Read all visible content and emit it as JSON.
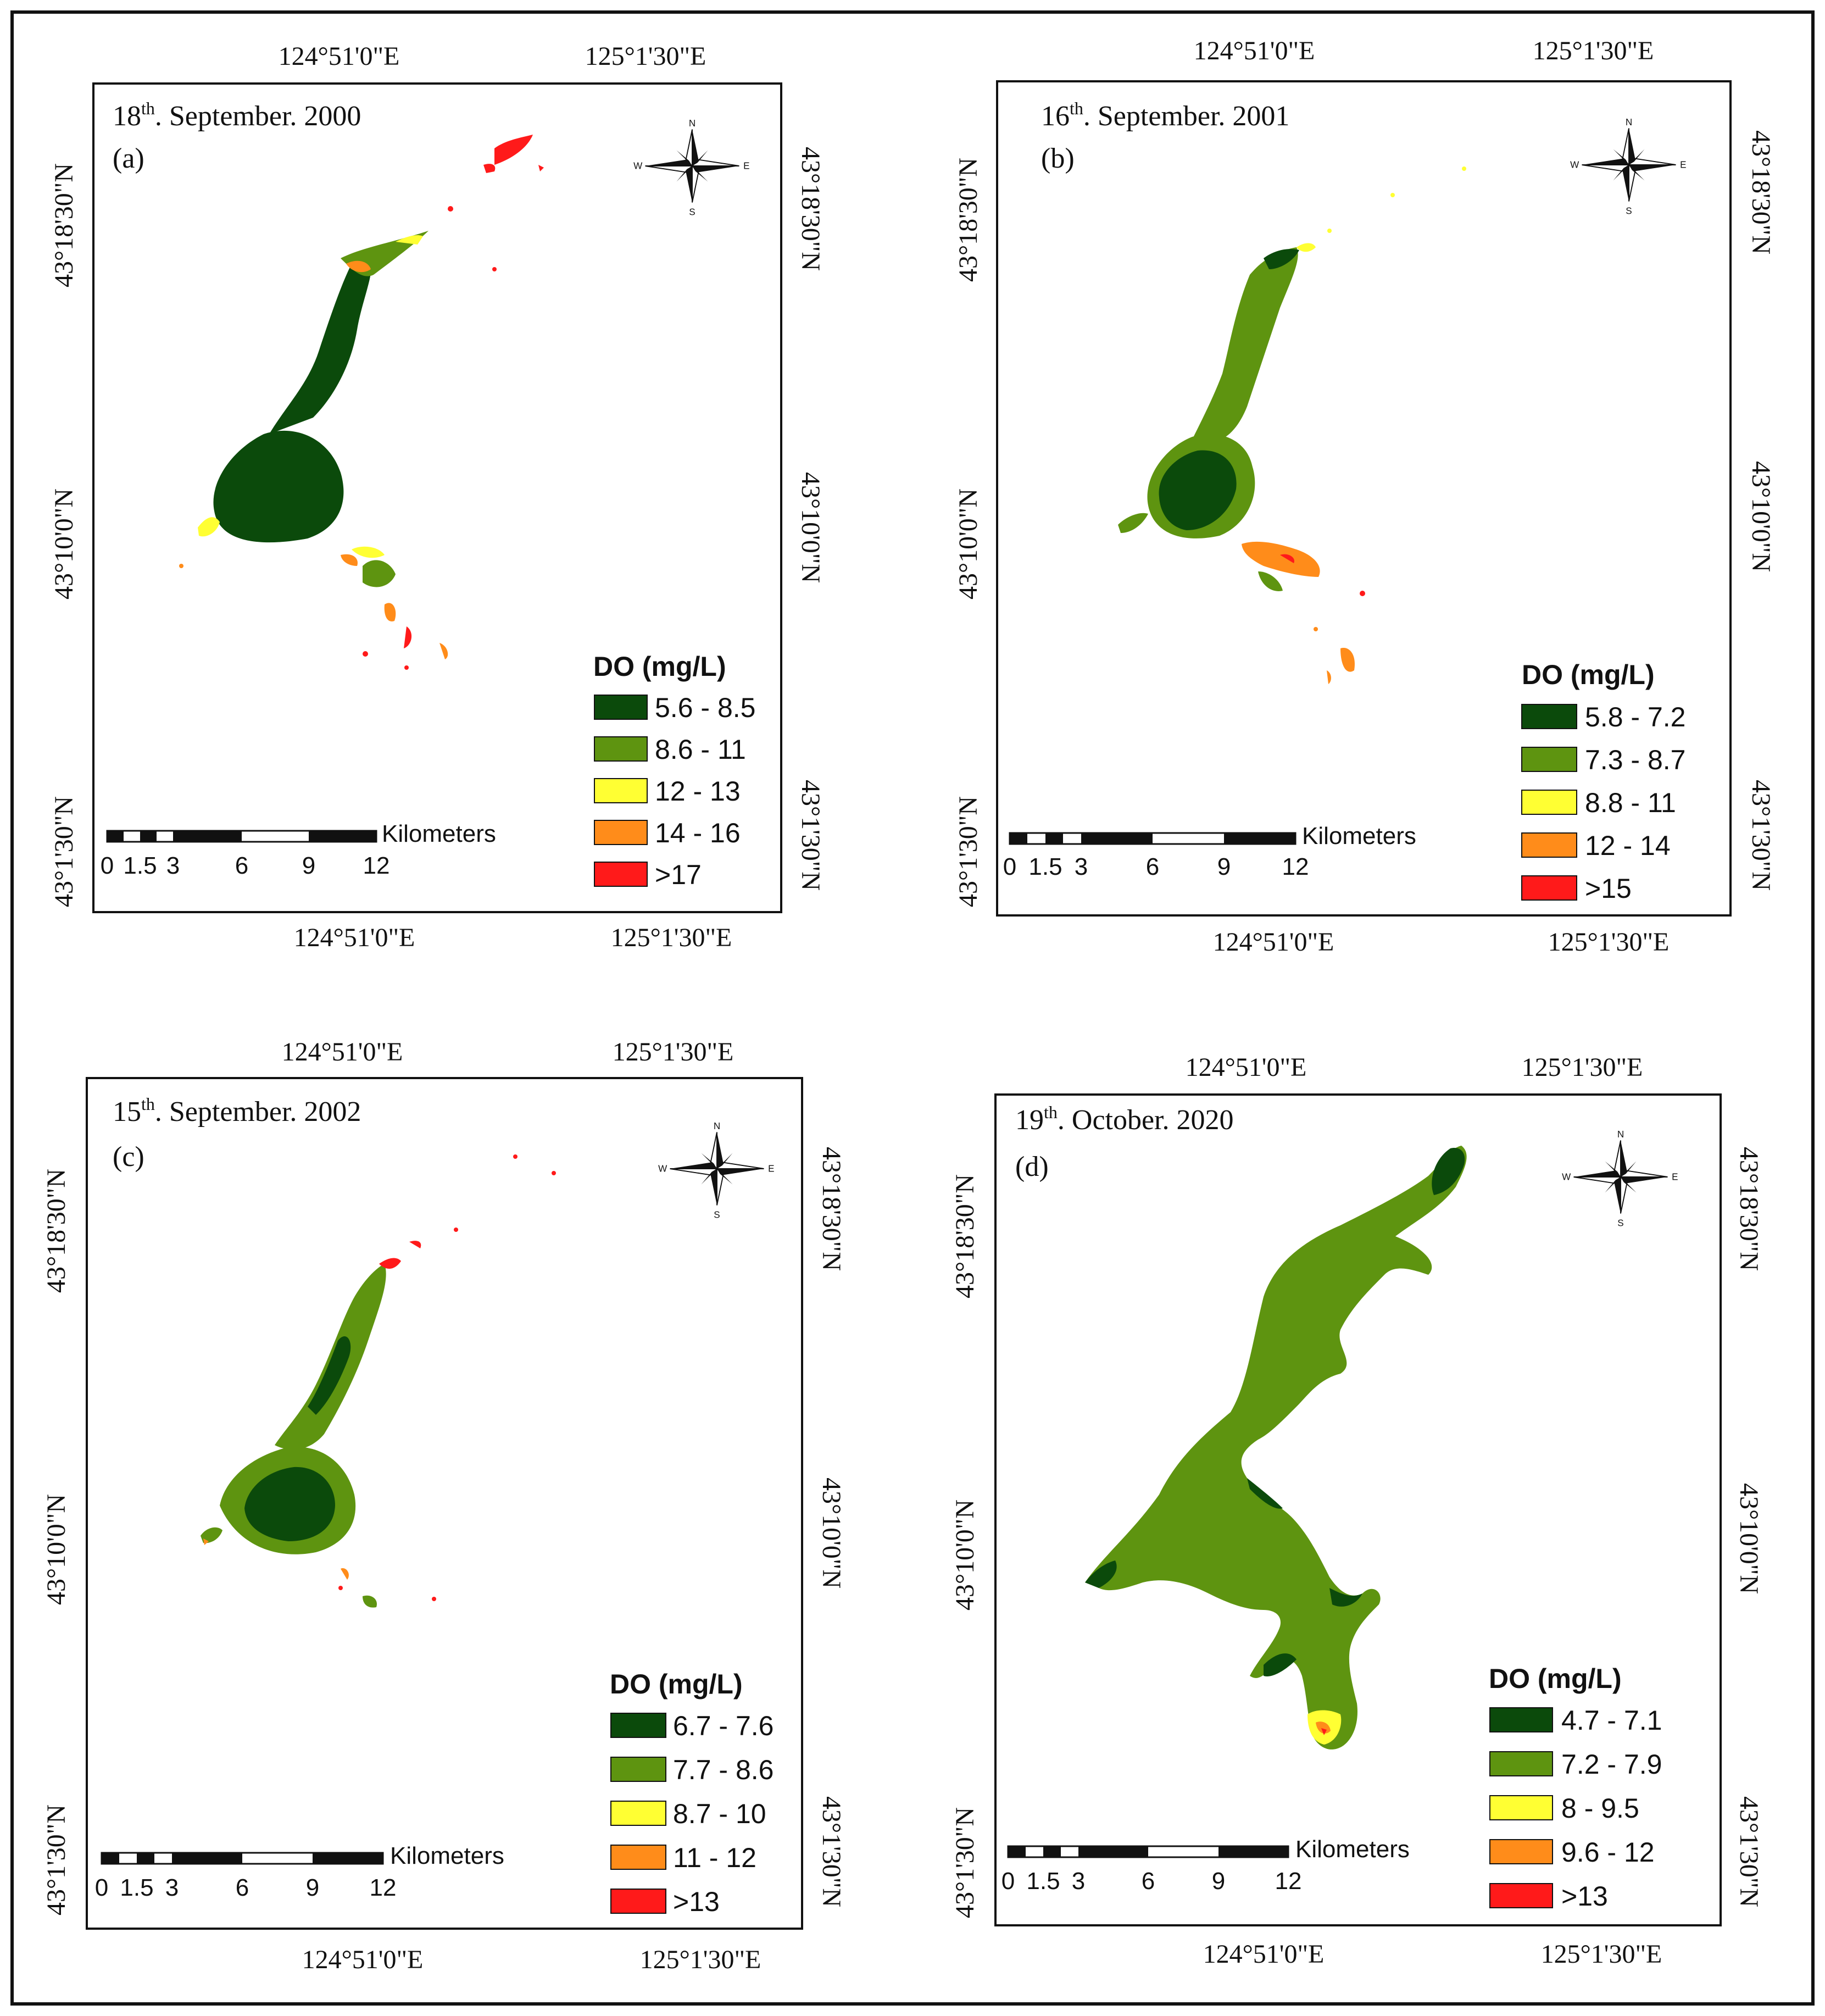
{
  "compass": {
    "n": "N",
    "s": "S",
    "e": "E",
    "w": "W"
  },
  "scale": {
    "unit": "Kilometers",
    "ticks": [
      "0",
      "1.5",
      "3",
      "6",
      "9",
      "12"
    ]
  },
  "colors": {
    "dark_green": "#0b4a0b",
    "green": "#5e9410",
    "yellow": "#ffff33",
    "orange": "#ff8c1a",
    "red": "#ff1a1a",
    "frame": "#111111"
  },
  "panels": [
    {
      "id": "a",
      "date_day": "18",
      "date_suffix": "th",
      "date_rest": ". September. 2000",
      "letter": "(a)",
      "coords": {
        "top_left": "124°51'0\"E",
        "top_right": "125°1'30\"E",
        "bottom_left": "124°51'0\"E",
        "bottom_right": "125°1'30\"E",
        "left_top": "43°18'30\"N",
        "left_mid": "43°10'0\"N",
        "left_bot": "43°1'30\"N",
        "right_top": "43°18'30\"N",
        "right_mid": "43°10'0\"N",
        "right_bot": "43°1'30\"N"
      },
      "legend": {
        "title": "DO (mg/L)",
        "classes": [
          "5.6 - 8.5",
          "8.6 - 11",
          "12 - 13",
          "14 - 16",
          ">17"
        ]
      }
    },
    {
      "id": "b",
      "date_day": "16",
      "date_suffix": "th",
      "date_rest": ". September. 2001",
      "letter": "(b)",
      "coords": {
        "top_left": "124°51'0\"E",
        "top_right": "125°1'30\"E",
        "bottom_left": "124°51'0\"E",
        "bottom_right": "125°1'30\"E",
        "left_top": "43°18'30\"N",
        "left_mid": "43°10'0\"N",
        "left_bot": "43°1'30\"N",
        "right_top": "43°18'30\"N",
        "right_mid": "43°10'0\"N",
        "right_bot": "43°1'30\"N"
      },
      "legend": {
        "title": "DO (mg/L)",
        "classes": [
          "5.8 - 7.2",
          "7.3 - 8.7",
          "8.8 - 11",
          "12 - 14",
          ">15"
        ]
      }
    },
    {
      "id": "c",
      "date_day": "15",
      "date_suffix": "th",
      "date_rest": ". September. 2002",
      "letter": "(c)",
      "coords": {
        "top_left": "124°51'0\"E",
        "top_right": "125°1'30\"E",
        "bottom_left": "124°51'0\"E",
        "bottom_right": "125°1'30\"E",
        "left_top": "43°18'30\"N",
        "left_mid": "43°10'0\"N",
        "left_bot": "43°1'30\"N",
        "right_top": "43°18'30\"N",
        "right_mid": "43°10'0\"N",
        "right_bot": "43°1'30\"N"
      },
      "legend": {
        "title": "DO (mg/L)",
        "classes": [
          "6.7 - 7.6",
          "7.7 - 8.6",
          "8.7 - 10",
          "11 - 12",
          ">13"
        ]
      }
    },
    {
      "id": "d",
      "date_day": "19",
      "date_suffix": "th",
      "date_rest": ". October. 2020",
      "letter": "(d)",
      "coords": {
        "top_left": "124°51'0\"E",
        "top_right": "125°1'30\"E",
        "bottom_left": "124°51'0\"E",
        "bottom_right": "125°1'30\"E",
        "left_top": "43°18'30\"N",
        "left_mid": "43°10'0\"N",
        "left_bot": "43°1'30\"N",
        "right_top": "43°18'30\"N",
        "right_mid": "43°10'0\"N",
        "right_bot": "43°1'30\"N"
      },
      "legend": {
        "title": "DO (mg/L)",
        "classes": [
          "4.7 - 7.1",
          "7.2 - 7.9",
          "8 - 9.5",
          "9.6 - 12",
          ">13"
        ]
      }
    }
  ]
}
